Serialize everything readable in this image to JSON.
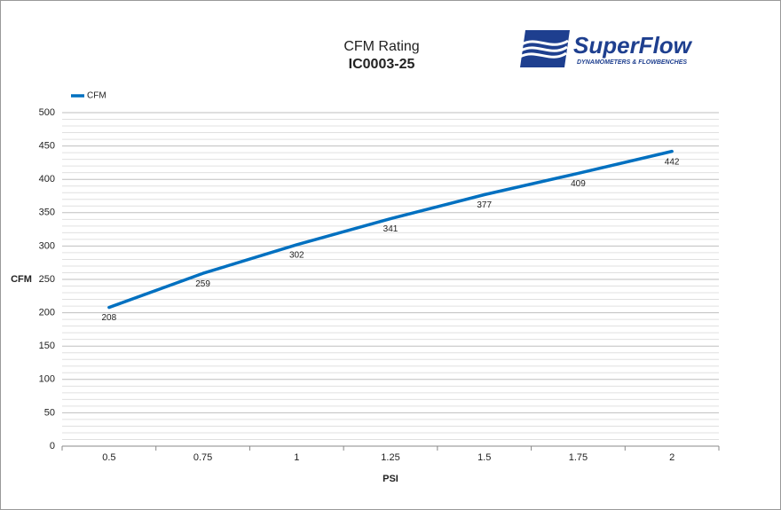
{
  "chart_data": {
    "type": "line",
    "title": "CFM Rating",
    "subtitle": "IC0003-25",
    "x_label": "PSI",
    "y_label": "CFM",
    "categories": [
      "0.5",
      "0.75",
      "1",
      "1.25",
      "1.5",
      "1.75",
      "2"
    ],
    "series": [
      {
        "name": "CFM",
        "color": "#0070c0",
        "values": [
          208,
          259,
          302,
          341,
          377,
          409,
          442
        ]
      }
    ],
    "ylim": [
      0,
      500
    ],
    "yticks": [
      0,
      50,
      100,
      150,
      200,
      250,
      300,
      350,
      400,
      450,
      500
    ],
    "grid": true,
    "minor_grid": true,
    "legend": "top-left",
    "data_labels": true
  },
  "logo": {
    "name": "SuperFlow",
    "tagline": "DYNAMOMETERS & FLOWBENCHES"
  }
}
